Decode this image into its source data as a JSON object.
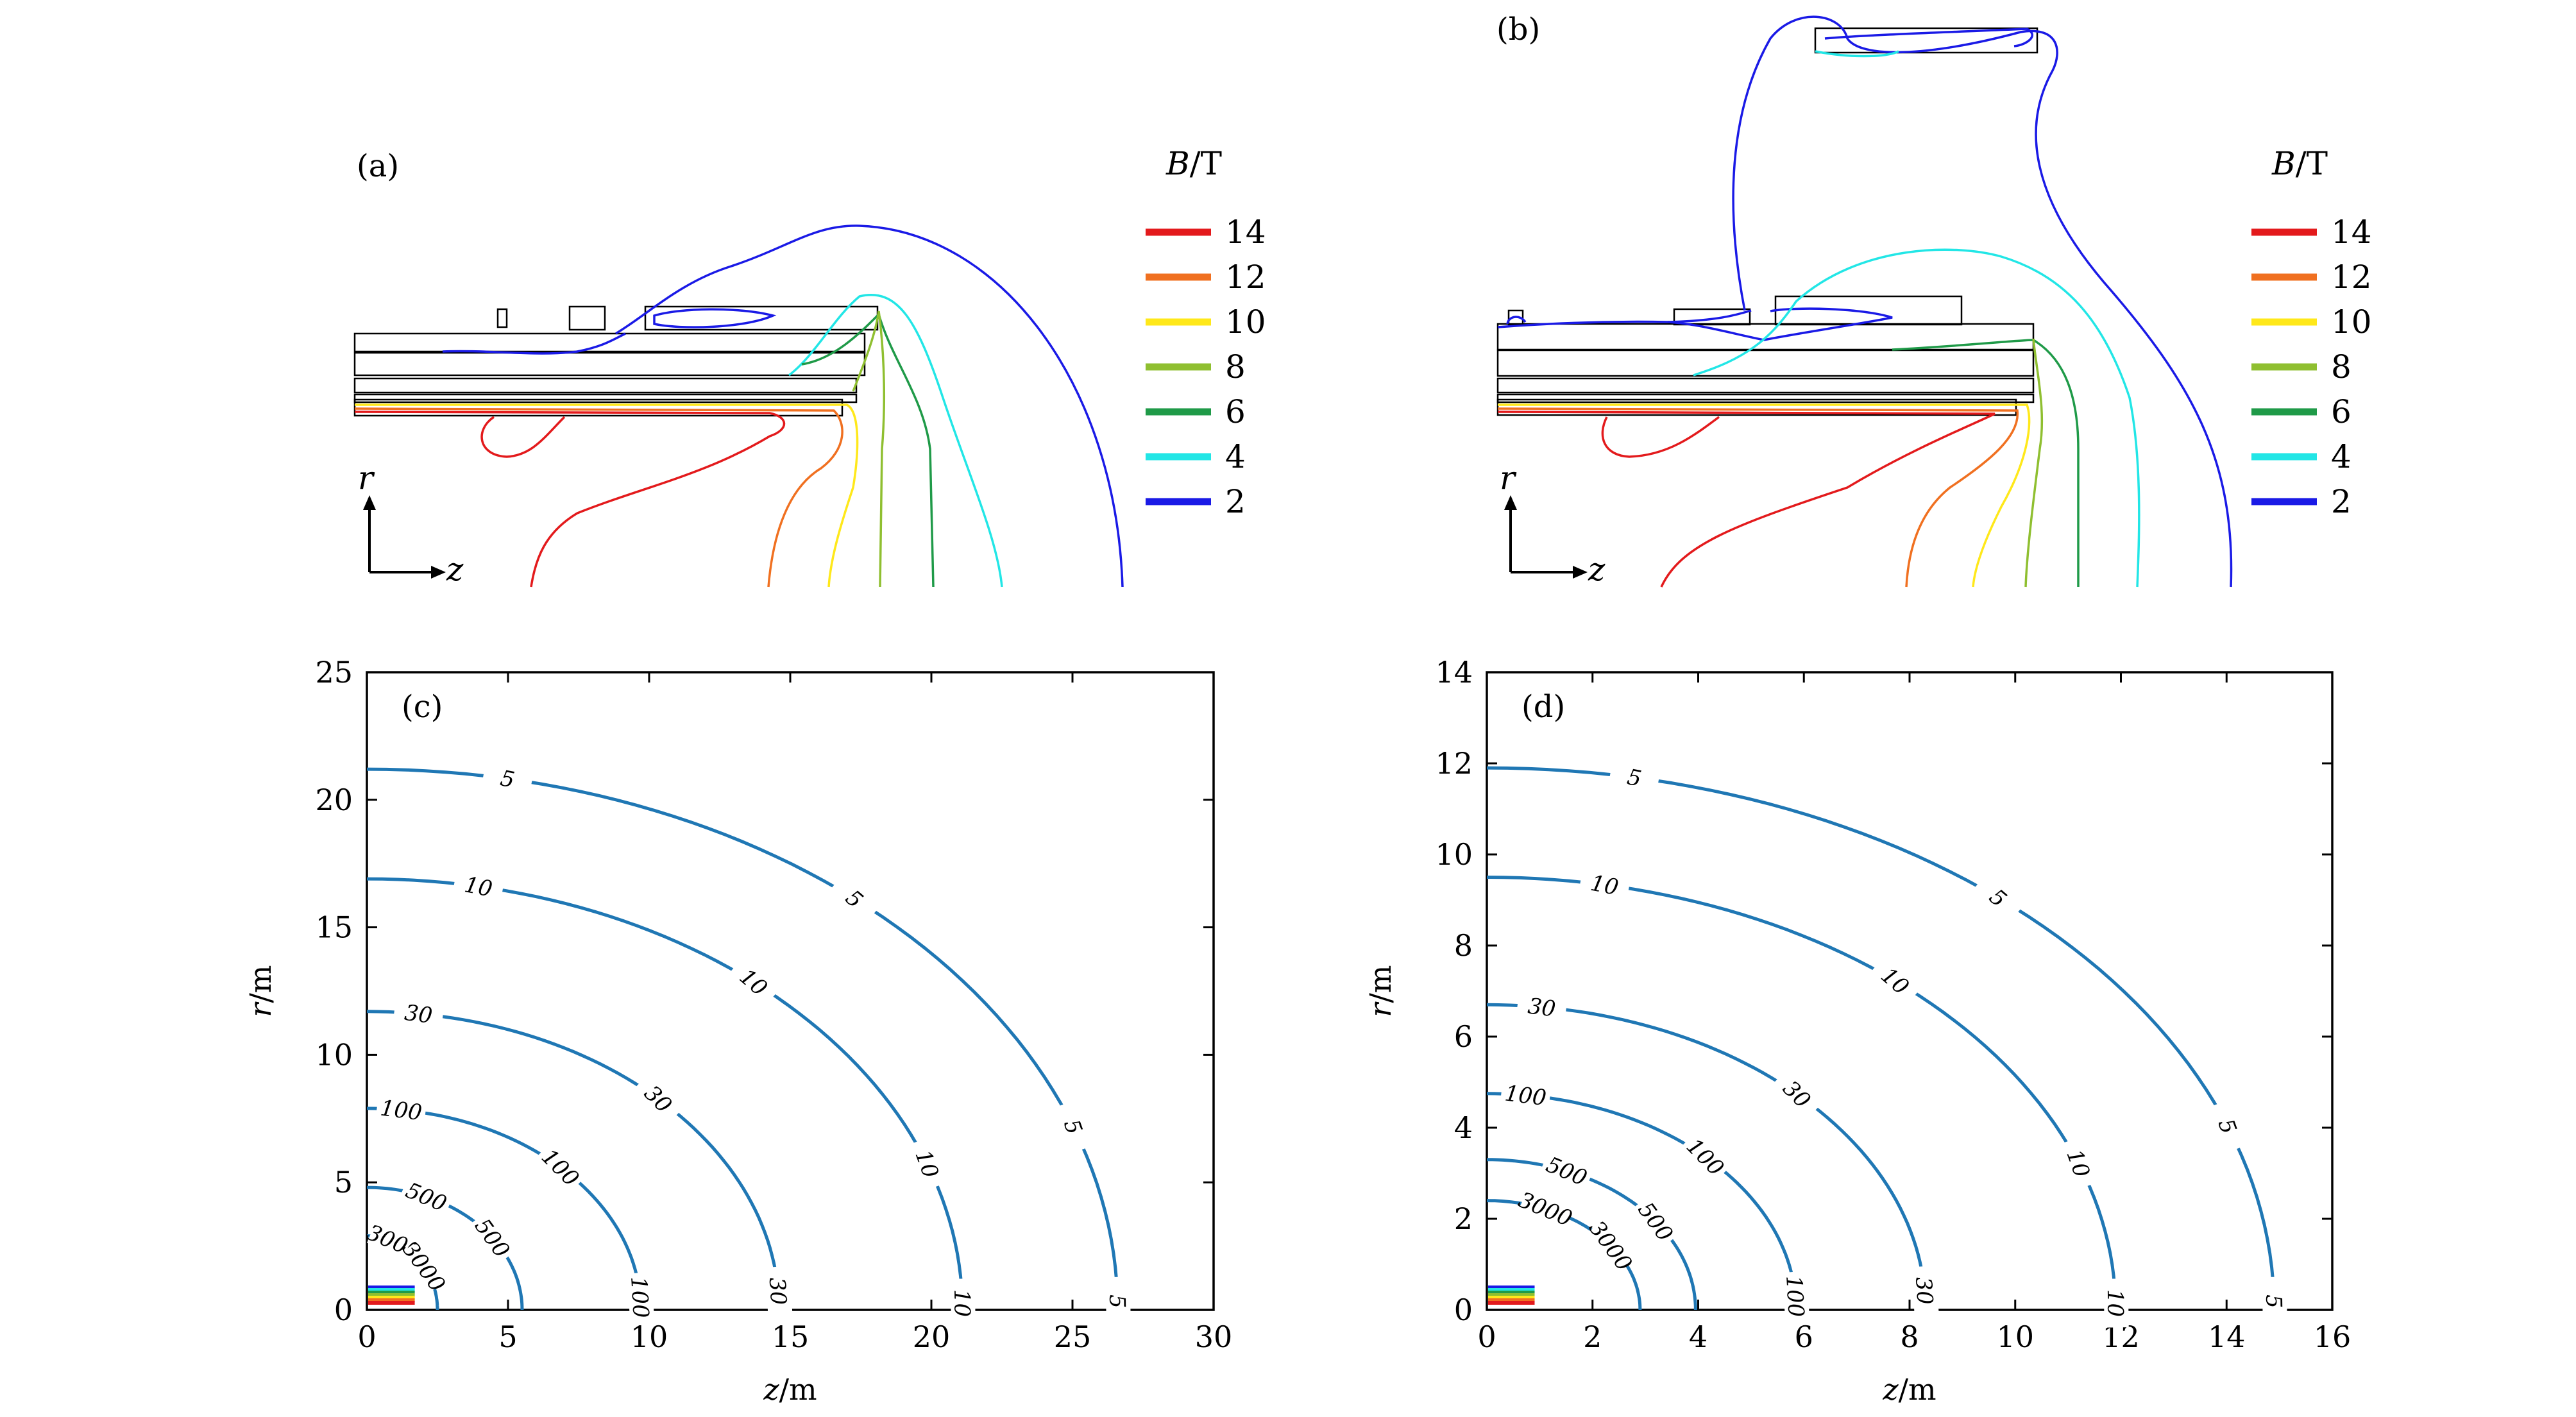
{
  "panels": {
    "a": {
      "label": "(a)"
    },
    "b": {
      "label": "(b)"
    },
    "c": {
      "label": "(c)"
    },
    "d": {
      "label": "(d)"
    }
  },
  "legend": {
    "title_sym": "B",
    "title_unit": "/T",
    "items": [
      {
        "value": "14",
        "color": "#e31a1c"
      },
      {
        "value": "12",
        "color": "#f07020"
      },
      {
        "value": "10",
        "color": "#ffe81a"
      },
      {
        "value": "8",
        "color": "#8fbf30"
      },
      {
        "value": "6",
        "color": "#1f9a48"
      },
      {
        "value": "4",
        "color": "#22e6e6"
      },
      {
        "value": "2",
        "color": "#1a1ae6"
      }
    ]
  },
  "axes_sketch": {
    "r": "r",
    "z": "z"
  },
  "chart_data": [
    {
      "panel": "c",
      "type": "contour",
      "xlabel_sym": "z",
      "xlabel_unit": "/m",
      "ylabel_sym": "r",
      "ylabel_unit": "/m",
      "xlim": [
        0,
        30
      ],
      "ylim": [
        0,
        25
      ],
      "xticks": [
        "0",
        "5",
        "10",
        "15",
        "20",
        "25",
        "30"
      ],
      "yticks": [
        "0",
        "5",
        "10",
        "15",
        "20",
        "25"
      ],
      "line_color": "#1f77b4",
      "levels": [
        {
          "label": "5",
          "r0": 21.2,
          "z0": 26.6
        },
        {
          "label": "10",
          "r0": 16.9,
          "z0": 21.1
        },
        {
          "label": "30",
          "r0": 11.7,
          "z0": 14.6
        },
        {
          "label": "100",
          "r0": 7.9,
          "z0": 9.7
        },
        {
          "label": "500",
          "r0": 4.8,
          "z0": 5.5
        },
        {
          "label": "3000",
          "r0": 2.9,
          "z0": 2.5
        }
      ]
    },
    {
      "panel": "d",
      "type": "contour",
      "xlabel_sym": "z",
      "xlabel_unit": "/m",
      "ylabel_sym": "r",
      "ylabel_unit": "/m",
      "xlim": [
        0,
        16
      ],
      "ylim": [
        0,
        14
      ],
      "xticks": [
        "0",
        "2",
        "4",
        "6",
        "8",
        "10",
        "12",
        "14",
        "16"
      ],
      "yticks": [
        "0",
        "2",
        "4",
        "6",
        "8",
        "10",
        "12",
        "14"
      ],
      "line_color": "#1f77b4",
      "levels": [
        {
          "label": "5",
          "r0": 11.9,
          "z0": 14.9
        },
        {
          "label": "10",
          "r0": 9.5,
          "z0": 11.9
        },
        {
          "label": "30",
          "r0": 6.7,
          "z0": 8.3
        },
        {
          "label": "100",
          "r0": 4.75,
          "z0": 5.85
        },
        {
          "label": "500",
          "r0": 3.3,
          "z0": 3.95
        },
        {
          "label": "3000",
          "r0": 2.4,
          "z0": 2.9
        }
      ]
    }
  ]
}
